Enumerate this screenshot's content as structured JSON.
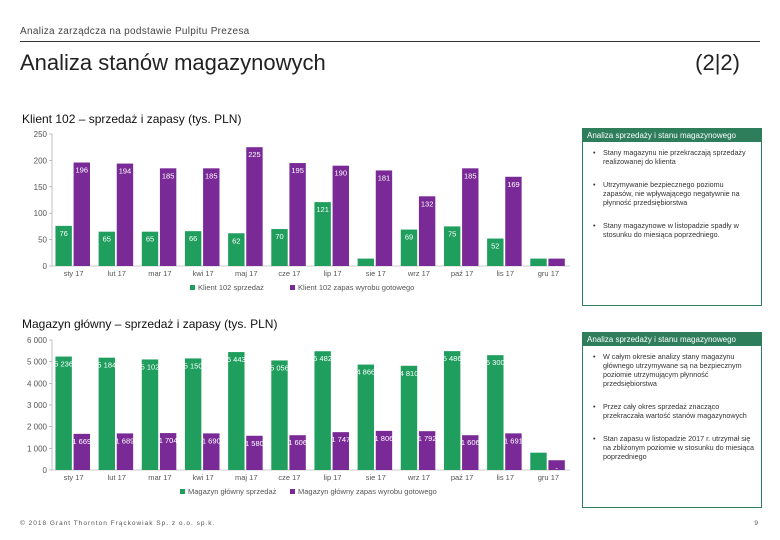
{
  "header": {
    "topline": "Analiza zarządcza na podstawie Pulpitu Prezesa",
    "title": "Analiza stanów magazynowych",
    "page_indicator": "(2|2)"
  },
  "section1": {
    "heading": "Klient 102 – sprzedaż i zapasy (tys. PLN)",
    "panel_title": "Analiza sprzedaży i stanu magazynowego",
    "bullets": [
      "Stany magazynu nie przekraczają sprzedaży realizowanej do klienta",
      "Utrzymywanie bezpiecznego poziomu zapasów, nie wpływającego negatywnie na płynność przedsiębiorstwa",
      "Stany magazynowe w listopadzie spadły w stosunku do miesiąca poprzedniego."
    ]
  },
  "section2": {
    "heading": "Magazyn główny – sprzedaż i zapasy (tys. PLN)",
    "panel_title": "Analiza sprzedaży i stanu magazynowego",
    "bullets": [
      "W całym okresie analizy stany magazynu głównego utrzymywane są na bezpiecznym poziomie utrzymującym płynność przedsiębiorstwa",
      "Przez cały okres sprzedaż znacząco przekraczała wartość stanów magazynowych",
      "Stan zapasu w listopadzie 2017 r. utrzymał się na zbliżonym poziomie w stosunku do miesiąca poprzedniego"
    ]
  },
  "colors": {
    "sales": "#1f9e5e",
    "stock": "#7a2a96",
    "accent": "#2e7d5b"
  },
  "footer": {
    "copyright": "© 2018 Grant Thornton Frąckowiak Sp. z o.o. sp.k.",
    "page": "9"
  },
  "chart_data": [
    {
      "type": "bar",
      "title": "Klient 102 – sprzedaż i zapasy (tys. PLN)",
      "categories": [
        "sty 17",
        "lut 17",
        "mar 17",
        "kwi 17",
        "maj 17",
        "cze 17",
        "lip 17",
        "sie 17",
        "wrz 17",
        "paź 17",
        "lis 17",
        "gru 17"
      ],
      "series": [
        {
          "name": "Klient 102 sprzedaż",
          "values": [
            76,
            65,
            65,
            66,
            62,
            70,
            121,
            14,
            69,
            75,
            52,
            14
          ],
          "labels": [
            "76",
            "65",
            "65",
            "66",
            "62",
            "70",
            "121",
            "",
            "69",
            "75",
            "52",
            ""
          ]
        },
        {
          "name": "Klient 102 zapas wyrobu gotowego",
          "values": [
            196,
            194,
            185,
            185,
            225,
            195,
            190,
            181,
            132,
            185,
            169,
            14
          ],
          "labels": [
            "196",
            "194",
            "185",
            "185",
            "225",
            "195",
            "190",
            "181",
            "132",
            "185",
            "169",
            "-"
          ]
        }
      ],
      "yticks": [
        "0",
        "50",
        "100",
        "150",
        "200",
        "250"
      ],
      "ylim": [
        0,
        250
      ],
      "legend": "bottom"
    },
    {
      "type": "bar",
      "title": "Magazyn główny – sprzedaż i zapasy (tys. PLN)",
      "categories": [
        "sty 17",
        "lut 17",
        "mar 17",
        "kwi 17",
        "maj 17",
        "cze 17",
        "lip 17",
        "sie 17",
        "wrz 17",
        "paź 17",
        "lis 17",
        "gru 17"
      ],
      "series": [
        {
          "name": "Magazyn główny sprzedaż",
          "values": [
            5236,
            5184,
            5102,
            5150,
            5443,
            5056,
            5482,
            4866,
            4810,
            5486,
            5300,
            800
          ],
          "labels": [
            "5 236",
            "5 184",
            "5 102",
            "5 150",
            "5 443",
            "5 056",
            "5 482",
            "4 866",
            "4 810",
            "5 486",
            "5 300",
            ""
          ]
        },
        {
          "name": "Magazyn główny zapas wyrobu gotowego",
          "values": [
            1669,
            1689,
            1704,
            1690,
            1580,
            1606,
            1747,
            1806,
            1792,
            1606,
            1691,
            450
          ],
          "labels": [
            "1 669",
            "1 689",
            "1 704",
            "1 690",
            "1 580",
            "1 606",
            "1 747",
            "1 806",
            "1 792",
            "1 606",
            "1 691",
            "-"
          ]
        }
      ],
      "yticks": [
        "0",
        "1 000",
        "2 000",
        "3 000",
        "4 000",
        "5 000",
        "6 000"
      ],
      "ylim": [
        0,
        6000
      ],
      "legend": "bottom"
    }
  ]
}
